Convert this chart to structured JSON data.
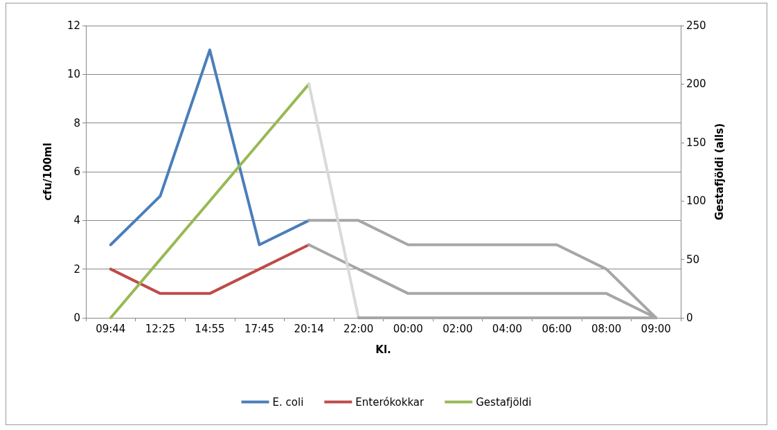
{
  "chart_data": {
    "type": "line",
    "xlabel": "Kl.",
    "ylabel": "cfu/100ml",
    "y2label": "Gestafjöldi (alls)",
    "categories": [
      "09:44",
      "12:25",
      "14:55",
      "17:45",
      "20:14",
      "22:00",
      "00:00",
      "02:00",
      "04:00",
      "06:00",
      "08:00",
      "09:00"
    ],
    "series": [
      {
        "name": "E. coli",
        "color": "#4a7ebb",
        "values": [
          3,
          5,
          11,
          3,
          4,
          null,
          null,
          null,
          null,
          null,
          null,
          null
        ]
      },
      {
        "name": "Enterókokkar",
        "color": "#be4b48",
        "values": [
          2,
          1,
          1,
          2,
          3,
          null,
          null,
          null,
          null,
          null,
          null,
          null
        ]
      },
      {
        "name": "Gestafjöldi",
        "color": "#98b954",
        "axis": "y2",
        "values": [
          0,
          50,
          100,
          150,
          200,
          null,
          null,
          null,
          null,
          null,
          null,
          null
        ]
      },
      {
        "color": "#a6a6a6",
        "values": [
          null,
          null,
          null,
          null,
          4,
          4,
          3,
          3,
          3,
          3,
          2,
          0
        ]
      },
      {
        "color": "#a6a6a6",
        "values": [
          null,
          null,
          null,
          null,
          3,
          2,
          1,
          1,
          1,
          1,
          1,
          0
        ]
      },
      {
        "color": "#d9d9d9",
        "axis": "y2",
        "values": [
          null,
          null,
          null,
          null,
          200,
          0,
          null,
          null,
          null,
          null,
          null,
          null
        ]
      },
      {
        "color": "#a6a6a6",
        "axis": "y2",
        "values": [
          null,
          null,
          null,
          null,
          null,
          0,
          0,
          0,
          0,
          0,
          0,
          0
        ]
      }
    ],
    "ylim": [
      0,
      12
    ],
    "yticks": [
      0,
      2,
      4,
      6,
      8,
      10,
      12
    ],
    "y2lim": [
      0,
      250
    ],
    "y2ticks": [
      0,
      50,
      100,
      150,
      200,
      250
    ],
    "grid": "y",
    "legend": "bottom",
    "marker": "none",
    "line_style": "solid"
  }
}
